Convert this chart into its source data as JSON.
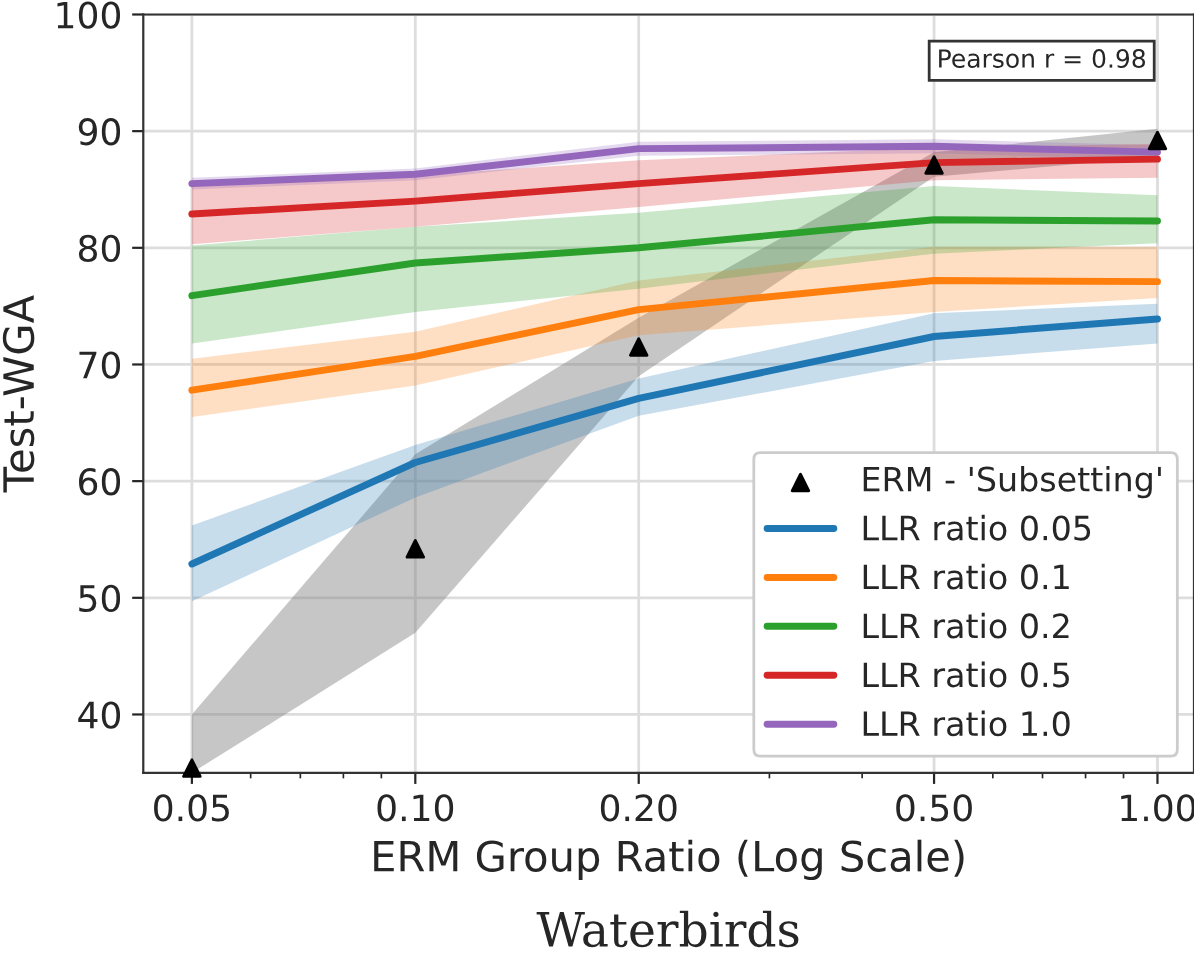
{
  "chart_data": {
    "type": "line",
    "xlabel": "ERM Group Ratio (Log Scale)",
    "ylabel": "Test-WGA",
    "log": "x",
    "grid": true,
    "legend": "bottom right",
    "x": [
      0.05,
      0.1,
      0.2,
      0.5,
      1.0
    ],
    "xlim": [
      0.043,
      1.12
    ],
    "xticks": [
      {
        "value": 0.05,
        "label": "0.05"
      },
      {
        "value": 0.1,
        "label": "0.10"
      },
      {
        "value": 0.2,
        "label": "0.20"
      },
      {
        "value": 0.5,
        "label": "0.50"
      },
      {
        "value": 1.0,
        "label": "1.00"
      }
    ],
    "ylim": [
      35,
      100
    ],
    "yticks": [
      40,
      50,
      60,
      70,
      80,
      90,
      100
    ],
    "series": [
      {
        "name": "ERM - 'Subsetting'",
        "type": "scatter",
        "marker": "triangle",
        "color": "#000000",
        "values": [
          35.4,
          54.2,
          71.5,
          87.1,
          89.2
        ],
        "lower": [
          35,
          47,
          69,
          86.1,
          87.8
        ],
        "upper": [
          40,
          62.3,
          74,
          88.2,
          90.2
        ]
      },
      {
        "name": "LLR ratio 0.05",
        "color": "#1f77b4",
        "values": [
          52.9,
          61.6,
          67.1,
          72.4,
          73.9
        ],
        "lower": [
          49.7,
          58.6,
          65.6,
          70.3,
          71.8
        ],
        "upper": [
          56.2,
          63.1,
          68.8,
          74.4,
          75.2
        ]
      },
      {
        "name": "LLR ratio 0.1",
        "color": "#ff7f0e",
        "values": [
          67.8,
          70.7,
          74.7,
          77.2,
          77.1
        ],
        "lower": [
          65.5,
          68.2,
          72.5,
          74.5,
          75.7
        ],
        "upper": [
          70.5,
          72.8,
          77.2,
          80.1,
          80.1
        ]
      },
      {
        "name": "LLR ratio 0.2",
        "color": "#2ca02c",
        "values": [
          75.9,
          78.7,
          80.0,
          82.4,
          82.3
        ],
        "lower": [
          71.8,
          74.5,
          76.5,
          79.5,
          80.4
        ],
        "upper": [
          80.2,
          81.8,
          83.0,
          85.3,
          84.5
        ]
      },
      {
        "name": "LLR ratio 0.5",
        "color": "#d62728",
        "values": [
          82.9,
          84.0,
          85.5,
          87.3,
          87.6
        ],
        "lower": [
          80.3,
          81.8,
          83.5,
          85.8,
          86.0
        ],
        "upper": [
          85.3,
          86.2,
          87.5,
          88.6,
          88.9
        ]
      },
      {
        "name": "LLR ratio 1.0",
        "color": "#9467bd",
        "values": [
          85.5,
          86.3,
          88.5,
          88.7,
          88.2
        ],
        "lower": [
          85.0,
          85.8,
          87.9,
          88.1,
          87.6
        ],
        "upper": [
          86.0,
          86.8,
          89.1,
          89.3,
          88.8
        ]
      }
    ],
    "annotations": [
      "Pearson r = 0.98",
      "Waterbirds"
    ]
  }
}
